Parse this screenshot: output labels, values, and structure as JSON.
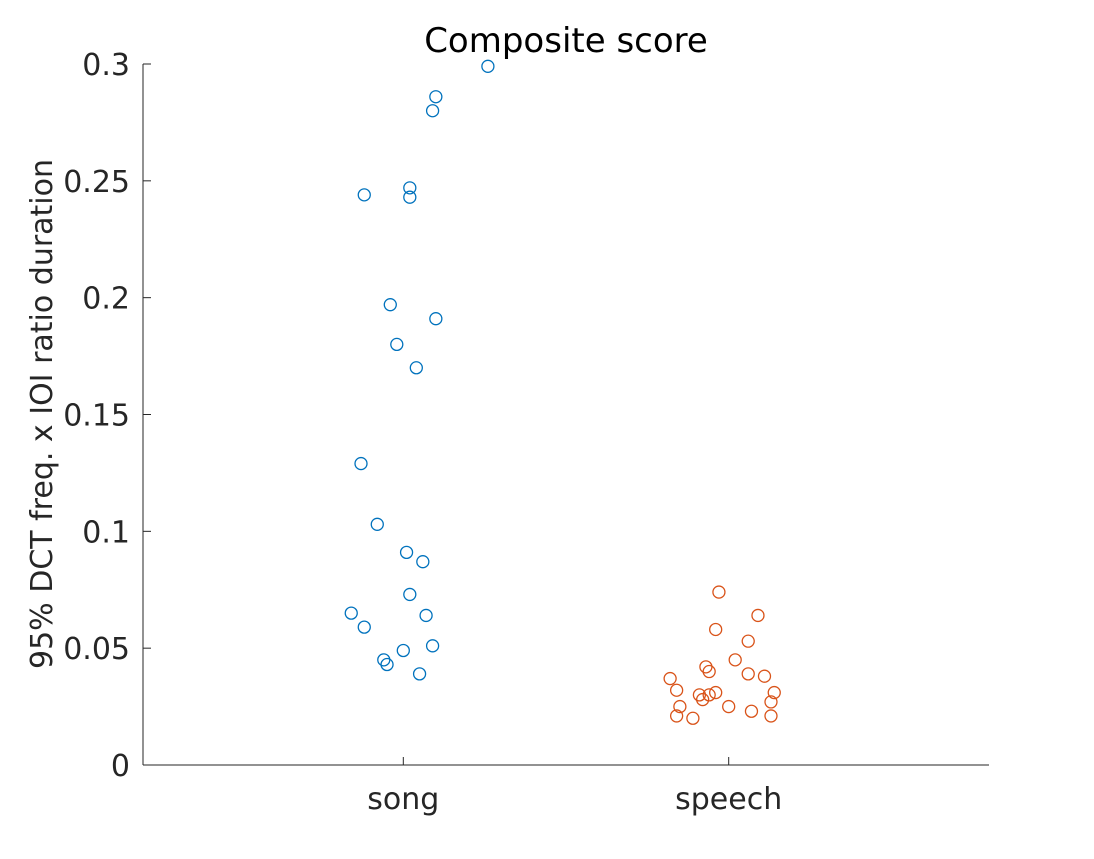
{
  "chart_data": {
    "type": "scatter",
    "title": "Composite score",
    "ylabel": "95% DCT freq. x IOI ratio duration",
    "xlabel": "",
    "categories": [
      "song",
      "speech"
    ],
    "ylim": [
      0,
      0.3
    ],
    "yticks": [
      0,
      0.05,
      0.1,
      0.15,
      0.2,
      0.25,
      0.3
    ],
    "ytick_labels": [
      "0",
      "0.05",
      "0.1",
      "0.15",
      "0.2",
      "0.25",
      "0.3"
    ],
    "grid": false,
    "legend": "none",
    "series": [
      {
        "category": "song",
        "color": "#0072BD",
        "points": [
          {
            "x": 1.26,
            "y": 0.299
          },
          {
            "x": 1.1,
            "y": 0.286
          },
          {
            "x": 1.09,
            "y": 0.28
          },
          {
            "x": 0.88,
            "y": 0.244
          },
          {
            "x": 1.02,
            "y": 0.247
          },
          {
            "x": 1.02,
            "y": 0.243
          },
          {
            "x": 0.96,
            "y": 0.197
          },
          {
            "x": 1.1,
            "y": 0.191
          },
          {
            "x": 0.98,
            "y": 0.18
          },
          {
            "x": 1.04,
            "y": 0.17
          },
          {
            "x": 0.87,
            "y": 0.129
          },
          {
            "x": 0.92,
            "y": 0.103
          },
          {
            "x": 1.01,
            "y": 0.091
          },
          {
            "x": 1.06,
            "y": 0.087
          },
          {
            "x": 1.02,
            "y": 0.073
          },
          {
            "x": 0.84,
            "y": 0.065
          },
          {
            "x": 1.07,
            "y": 0.064
          },
          {
            "x": 0.88,
            "y": 0.059
          },
          {
            "x": 1.09,
            "y": 0.051
          },
          {
            "x": 1.0,
            "y": 0.049
          },
          {
            "x": 0.94,
            "y": 0.045
          },
          {
            "x": 0.95,
            "y": 0.043
          },
          {
            "x": 1.05,
            "y": 0.039
          }
        ]
      },
      {
        "category": "speech",
        "color": "#D95319",
        "points": [
          {
            "x": 1.97,
            "y": 0.074
          },
          {
            "x": 2.09,
            "y": 0.064
          },
          {
            "x": 1.96,
            "y": 0.058
          },
          {
            "x": 2.06,
            "y": 0.053
          },
          {
            "x": 2.02,
            "y": 0.045
          },
          {
            "x": 1.93,
            "y": 0.042
          },
          {
            "x": 1.94,
            "y": 0.04
          },
          {
            "x": 2.06,
            "y": 0.039
          },
          {
            "x": 2.11,
            "y": 0.038
          },
          {
            "x": 1.82,
            "y": 0.037
          },
          {
            "x": 1.84,
            "y": 0.032
          },
          {
            "x": 1.96,
            "y": 0.031
          },
          {
            "x": 2.14,
            "y": 0.031
          },
          {
            "x": 1.91,
            "y": 0.03
          },
          {
            "x": 1.94,
            "y": 0.03
          },
          {
            "x": 1.92,
            "y": 0.028
          },
          {
            "x": 2.13,
            "y": 0.027
          },
          {
            "x": 1.85,
            "y": 0.025
          },
          {
            "x": 2.0,
            "y": 0.025
          },
          {
            "x": 2.07,
            "y": 0.023
          },
          {
            "x": 1.84,
            "y": 0.021
          },
          {
            "x": 2.13,
            "y": 0.021
          },
          {
            "x": 1.89,
            "y": 0.02
          }
        ]
      }
    ]
  }
}
